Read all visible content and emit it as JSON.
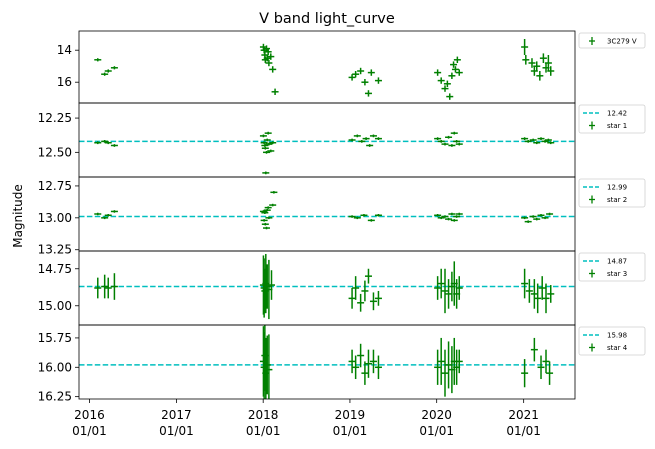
{
  "title": "V band light_curve",
  "ylabel": "Magnitude",
  "x_ticks": [
    {
      "label": [
        "2016",
        "01/01"
      ],
      "date": "2016-01-01"
    },
    {
      "label": [
        "2017",
        "01/01"
      ],
      "date": "2017-01-01"
    },
    {
      "label": [
        "2018",
        "01/01"
      ],
      "date": "2018-01-01"
    },
    {
      "label": [
        "2019",
        "01/01"
      ],
      "date": "2019-01-01"
    },
    {
      "label": [
        "2020",
        "01/01"
      ],
      "date": "2020-01-01"
    },
    {
      "label": [
        "2021",
        "01/01"
      ],
      "date": "2021-01-01"
    }
  ],
  "xlim": [
    "2015-11-18",
    "2021-08-05"
  ],
  "colors": {
    "data": "#008000",
    "reference": "#00bfbf"
  },
  "chart_data": [
    {
      "type": "scatter",
      "ylim": [
        17.3,
        12.8
      ],
      "y_inverted": true,
      "yticks": [
        "14",
        "16"
      ],
      "reference_line": null,
      "legend": [
        {
          "marker": "errorbar",
          "label": "3C279 V"
        }
      ],
      "series": [
        {
          "name": "3C279 V",
          "points": [
            [
              "2016-02-05",
              14.6,
              0.1
            ],
            [
              "2016-03-05",
              15.5,
              0.1
            ],
            [
              "2016-03-20",
              15.3,
              0.1
            ],
            [
              "2016-04-15",
              15.1,
              0.1
            ],
            [
              "2018-01-02",
              13.8,
              0.2
            ],
            [
              "2018-01-05",
              14.0,
              0.2
            ],
            [
              "2018-01-08",
              14.3,
              0.2
            ],
            [
              "2018-01-10",
              14.6,
              0.2
            ],
            [
              "2018-01-15",
              13.9,
              0.2
            ],
            [
              "2018-01-18",
              14.5,
              0.2
            ],
            [
              "2018-01-22",
              14.1,
              0.2
            ],
            [
              "2018-01-25",
              14.8,
              0.2
            ],
            [
              "2018-02-02",
              14.4,
              0.2
            ],
            [
              "2018-02-10",
              15.2,
              0.2
            ],
            [
              "2018-02-20",
              16.6,
              0.2
            ],
            [
              "2019-01-10",
              15.7,
              0.2
            ],
            [
              "2019-01-25",
              15.5,
              0.2
            ],
            [
              "2019-02-15",
              15.3,
              0.2
            ],
            [
              "2019-03-05",
              16.0,
              0.2
            ],
            [
              "2019-03-20",
              16.7,
              0.2
            ],
            [
              "2019-04-01",
              15.4,
              0.2
            ],
            [
              "2019-05-01",
              15.9,
              0.2
            ],
            [
              "2020-01-05",
              15.4,
              0.2
            ],
            [
              "2020-01-20",
              15.9,
              0.2
            ],
            [
              "2020-02-05",
              16.4,
              0.2
            ],
            [
              "2020-02-15",
              16.1,
              0.2
            ],
            [
              "2020-02-25",
              16.9,
              0.2
            ],
            [
              "2020-03-05",
              15.6,
              0.2
            ],
            [
              "2020-03-12",
              14.9,
              0.2
            ],
            [
              "2020-03-20",
              15.2,
              0.2
            ],
            [
              "2020-03-28",
              14.6,
              0.2
            ],
            [
              "2020-04-05",
              15.4,
              0.2
            ],
            [
              "2021-01-05",
              13.8,
              0.5
            ],
            [
              "2021-01-10",
              14.6,
              0.3
            ],
            [
              "2021-02-05",
              14.8,
              0.3
            ],
            [
              "2021-02-15",
              15.3,
              0.3
            ],
            [
              "2021-02-25",
              15.0,
              0.3
            ],
            [
              "2021-03-10",
              15.6,
              0.3
            ],
            [
              "2021-03-25",
              14.5,
              0.3
            ],
            [
              "2021-04-05",
              15.1,
              0.3
            ],
            [
              "2021-04-15",
              14.8,
              0.5
            ],
            [
              "2021-04-25",
              15.3,
              0.3
            ]
          ]
        }
      ]
    },
    {
      "type": "scatter",
      "ylim": [
        12.68,
        12.14
      ],
      "y_inverted": true,
      "yticks": [
        "12.25",
        "12.50"
      ],
      "reference_line": 12.42,
      "legend": [
        {
          "marker": "dashed-line",
          "label": "12.42"
        },
        {
          "marker": "errorbar",
          "label": "star 1"
        }
      ],
      "series": [
        {
          "name": "star 1",
          "points": [
            [
              "2016-02-05",
              12.43,
              0.01
            ],
            [
              "2016-03-05",
              12.42,
              0.01
            ],
            [
              "2016-03-20",
              12.43,
              0.01
            ],
            [
              "2016-04-15",
              12.45,
              0.01
            ],
            [
              "2018-01-02",
              12.38,
              0.01
            ],
            [
              "2018-01-05",
              12.43,
              0.01
            ],
            [
              "2018-01-08",
              12.45,
              0.01
            ],
            [
              "2018-01-10",
              12.47,
              0.01
            ],
            [
              "2018-01-15",
              12.5,
              0.01
            ],
            [
              "2018-01-18",
              12.41,
              0.01
            ],
            [
              "2018-01-22",
              12.36,
              0.01
            ],
            [
              "2018-01-25",
              12.44,
              0.01
            ],
            [
              "2018-01-12",
              12.65,
              0.01
            ],
            [
              "2018-02-02",
              12.49,
              0.01
            ],
            [
              "2018-02-10",
              12.43,
              0.01
            ],
            [
              "2019-01-10",
              12.41,
              0.01
            ],
            [
              "2019-02-01",
              12.38,
              0.01
            ],
            [
              "2019-02-20",
              12.42,
              0.01
            ],
            [
              "2019-03-10",
              12.4,
              0.01
            ],
            [
              "2019-03-25",
              12.45,
              0.01
            ],
            [
              "2019-04-10",
              12.38,
              0.01
            ],
            [
              "2019-05-01",
              12.4,
              0.01
            ],
            [
              "2020-01-05",
              12.4,
              0.01
            ],
            [
              "2020-01-20",
              12.42,
              0.01
            ],
            [
              "2020-02-05",
              12.44,
              0.01
            ],
            [
              "2020-02-20",
              12.39,
              0.01
            ],
            [
              "2020-03-05",
              12.45,
              0.01
            ],
            [
              "2020-03-15",
              12.36,
              0.01
            ],
            [
              "2020-03-25",
              12.42,
              0.01
            ],
            [
              "2020-04-05",
              12.44,
              0.01
            ],
            [
              "2021-01-05",
              12.4,
              0.01
            ],
            [
              "2021-01-20",
              12.42,
              0.01
            ],
            [
              "2021-02-10",
              12.41,
              0.01
            ],
            [
              "2021-02-25",
              12.43,
              0.01
            ],
            [
              "2021-03-15",
              12.4,
              0.01
            ],
            [
              "2021-04-01",
              12.42,
              0.01
            ],
            [
              "2021-04-15",
              12.41,
              0.01
            ],
            [
              "2021-04-25",
              12.43,
              0.01
            ]
          ]
        }
      ]
    },
    {
      "type": "scatter",
      "ylim": [
        13.26,
        12.68
      ],
      "y_inverted": true,
      "yticks": [
        "12.75",
        "13.00",
        "13.25"
      ],
      "reference_line": 12.99,
      "legend": [
        {
          "marker": "dashed-line",
          "label": "12.99"
        },
        {
          "marker": "errorbar",
          "label": "star 2"
        }
      ],
      "series": [
        {
          "name": "star 2",
          "points": [
            [
              "2016-02-05",
              12.97,
              0.01
            ],
            [
              "2016-03-05",
              13.0,
              0.01
            ],
            [
              "2016-03-20",
              12.98,
              0.01
            ],
            [
              "2016-04-15",
              12.95,
              0.01
            ],
            [
              "2018-01-02",
              12.95,
              0.01
            ],
            [
              "2018-01-05",
              13.02,
              0.01
            ],
            [
              "2018-01-08",
              12.96,
              0.01
            ],
            [
              "2018-01-10",
              13.05,
              0.01
            ],
            [
              "2018-01-15",
              13.08,
              0.01
            ],
            [
              "2018-01-18",
              12.94,
              0.01
            ],
            [
              "2018-01-22",
              12.92,
              0.01
            ],
            [
              "2018-01-25",
              13.0,
              0.01
            ],
            [
              "2018-02-10",
              12.9,
              0.01
            ],
            [
              "2018-02-15",
              12.8,
              0.01
            ],
            [
              "2019-01-10",
              12.99,
              0.01
            ],
            [
              "2019-02-01",
              13.0,
              0.01
            ],
            [
              "2019-03-01",
              12.98,
              0.01
            ],
            [
              "2019-04-01",
              13.02,
              0.01
            ],
            [
              "2019-05-01",
              12.98,
              0.01
            ],
            [
              "2020-01-05",
              12.98,
              0.01
            ],
            [
              "2020-01-20",
              13.0,
              0.01
            ],
            [
              "2020-02-05",
              12.99,
              0.01
            ],
            [
              "2020-02-20",
              13.01,
              0.01
            ],
            [
              "2020-03-05",
              12.97,
              0.01
            ],
            [
              "2020-03-15",
              13.02,
              0.01
            ],
            [
              "2020-03-25",
              12.99,
              0.01
            ],
            [
              "2020-04-05",
              12.97,
              0.01
            ],
            [
              "2021-01-05",
              13.0,
              0.01
            ],
            [
              "2021-01-20",
              13.03,
              0.01
            ],
            [
              "2021-02-10",
              12.99,
              0.01
            ],
            [
              "2021-02-25",
              13.01,
              0.01
            ],
            [
              "2021-03-15",
              12.98,
              0.01
            ],
            [
              "2021-04-01",
              13.0,
              0.01
            ],
            [
              "2021-04-20",
              12.97,
              0.01
            ]
          ]
        }
      ]
    },
    {
      "type": "scatter",
      "ylim": [
        15.13,
        14.63
      ],
      "y_inverted": true,
      "yticks": [
        "14.75",
        "15.00"
      ],
      "reference_line": 14.87,
      "legend": [
        {
          "marker": "dashed-line",
          "label": "14.87"
        },
        {
          "marker": "errorbar",
          "label": "star 3"
        }
      ],
      "series": [
        {
          "name": "star 3",
          "points": [
            [
              "2016-02-05",
              14.88,
              0.07
            ],
            [
              "2016-03-05",
              14.87,
              0.08
            ],
            [
              "2016-03-20",
              14.88,
              0.07
            ],
            [
              "2016-04-15",
              14.87,
              0.09
            ],
            [
              "2018-01-02",
              14.86,
              0.2
            ],
            [
              "2018-01-05",
              14.88,
              0.2
            ],
            [
              "2018-01-08",
              14.9,
              0.15
            ],
            [
              "2018-01-12",
              14.85,
              0.2
            ],
            [
              "2018-01-18",
              14.87,
              0.15
            ],
            [
              "2018-01-25",
              14.89,
              0.2
            ],
            [
              "2018-02-05",
              14.86,
              0.1
            ],
            [
              "2019-01-10",
              14.95,
              0.07
            ],
            [
              "2019-01-25",
              14.88,
              0.08
            ],
            [
              "2019-02-15",
              14.98,
              0.06
            ],
            [
              "2019-03-05",
              14.9,
              0.07
            ],
            [
              "2019-03-20",
              14.8,
              0.05
            ],
            [
              "2019-04-10",
              14.97,
              0.06
            ],
            [
              "2019-05-01",
              14.95,
              0.05
            ],
            [
              "2020-01-05",
              14.88,
              0.08
            ],
            [
              "2020-01-20",
              14.85,
              0.1
            ],
            [
              "2020-02-05",
              14.9,
              0.15
            ],
            [
              "2020-02-20",
              14.92,
              0.1
            ],
            [
              "2020-03-05",
              14.87,
              0.1
            ],
            [
              "2020-03-15",
              14.85,
              0.15
            ],
            [
              "2020-03-25",
              14.92,
              0.1
            ],
            [
              "2020-04-05",
              14.88,
              0.08
            ],
            [
              "2021-01-05",
              14.85,
              0.1
            ],
            [
              "2021-01-25",
              14.9,
              0.08
            ],
            [
              "2021-02-15",
              14.92,
              0.1
            ],
            [
              "2021-03-01",
              14.95,
              0.1
            ],
            [
              "2021-03-20",
              14.88,
              0.08
            ],
            [
              "2021-04-05",
              14.95,
              0.1
            ],
            [
              "2021-04-25",
              14.92,
              0.06
            ]
          ]
        }
      ]
    },
    {
      "type": "scatter",
      "ylim": [
        16.27,
        15.64
      ],
      "y_inverted": true,
      "yticks": [
        "15.75",
        "16.00",
        "16.25"
      ],
      "reference_line": 15.98,
      "legend": [
        {
          "marker": "dashed-line",
          "label": "15.98"
        },
        {
          "marker": "errorbar",
          "label": "star 4"
        }
      ],
      "series": [
        {
          "name": "star 4",
          "points": [
            [
              "2018-01-02",
              15.95,
              0.3
            ],
            [
              "2018-01-05",
              16.0,
              0.3
            ],
            [
              "2018-01-08",
              15.9,
              0.3
            ],
            [
              "2018-01-12",
              16.05,
              0.3
            ],
            [
              "2018-01-18",
              15.98,
              0.25
            ],
            [
              "2018-01-25",
              16.02,
              0.3
            ],
            [
              "2019-01-10",
              15.95,
              0.1
            ],
            [
              "2019-01-25",
              16.0,
              0.1
            ],
            [
              "2019-02-15",
              15.9,
              0.1
            ],
            [
              "2019-03-05",
              16.05,
              0.1
            ],
            [
              "2019-03-20",
              15.97,
              0.12
            ],
            [
              "2019-04-10",
              15.95,
              0.1
            ],
            [
              "2019-05-01",
              16.0,
              0.1
            ],
            [
              "2020-01-05",
              16.0,
              0.15
            ],
            [
              "2020-01-20",
              15.95,
              0.2
            ],
            [
              "2020-02-05",
              16.05,
              0.2
            ],
            [
              "2020-02-20",
              15.98,
              0.2
            ],
            [
              "2020-03-05",
              16.02,
              0.2
            ],
            [
              "2020-03-15",
              15.95,
              0.2
            ],
            [
              "2020-03-25",
              16.0,
              0.15
            ],
            [
              "2020-04-05",
              15.95,
              0.1
            ],
            [
              "2021-01-05",
              16.05,
              0.12
            ],
            [
              "2021-02-15",
              15.85,
              0.1
            ],
            [
              "2021-03-15",
              16.0,
              0.1
            ],
            [
              "2021-04-05",
              15.95,
              0.1
            ],
            [
              "2021-04-20",
              16.05,
              0.1
            ]
          ]
        }
      ]
    }
  ]
}
